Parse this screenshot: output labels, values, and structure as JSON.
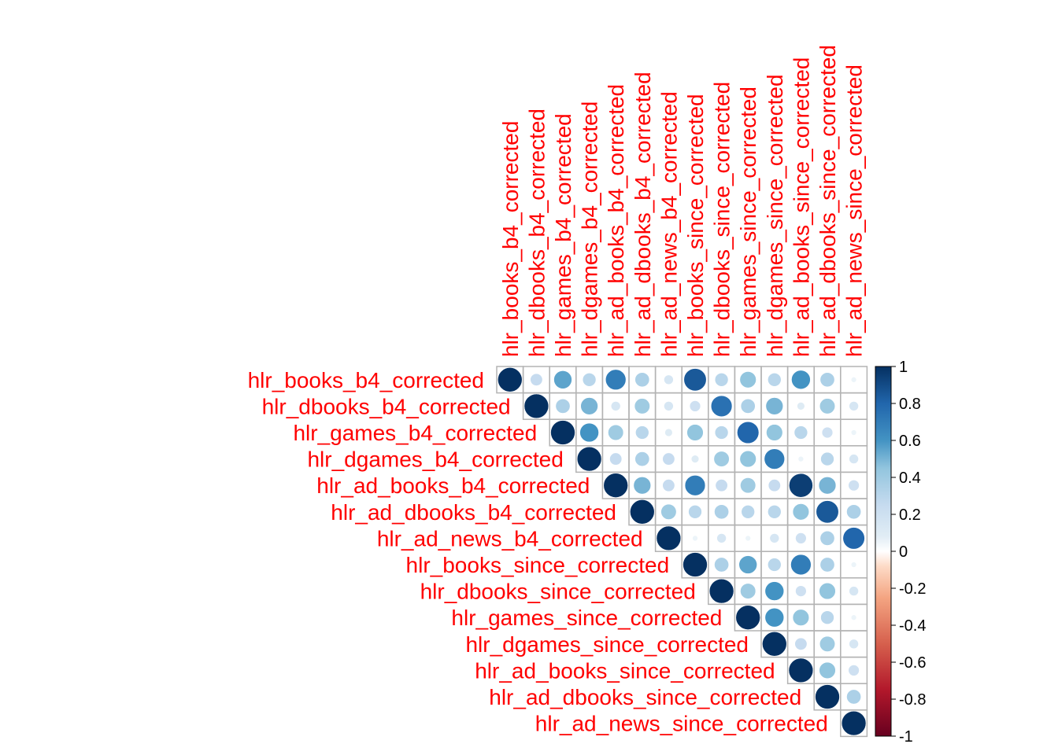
{
  "chart_data": {
    "type": "heatmap",
    "subtype": "correlation-matrix-upper-circles",
    "label_color": "#ff0000",
    "variables": [
      "hlr_books_b4_corrected",
      "hlr_dbooks_b4_corrected",
      "hlr_games_b4_corrected",
      "hlr_dgames_b4_corrected",
      "hlr_ad_books_b4_corrected",
      "hlr_ad_dbooks_b4_corrected",
      "hlr_ad_news_b4_corrected",
      "hlr_books_since_corrected",
      "hlr_dbooks_since_corrected",
      "hlr_games_since_corrected",
      "hlr_dgames_since_corrected",
      "hlr_ad_books_since_corrected",
      "hlr_ad_dbooks_since_corrected",
      "hlr_ad_news_since_corrected"
    ],
    "matrix": [
      [
        1,
        0.25,
        0.55,
        0.3,
        0.7,
        0.35,
        0.15,
        0.85,
        0.3,
        0.45,
        0.3,
        0.6,
        0.35,
        0.05
      ],
      [
        null,
        1,
        0.35,
        0.5,
        0.15,
        0.4,
        0.15,
        0.2,
        0.75,
        0.35,
        0.5,
        0.1,
        0.4,
        0.15
      ],
      [
        null,
        null,
        1,
        0.6,
        0.4,
        0.3,
        0.1,
        0.45,
        0.3,
        0.8,
        0.45,
        0.3,
        0.2,
        0.05
      ],
      [
        null,
        null,
        null,
        1,
        0.25,
        0.35,
        0.25,
        0.1,
        0.4,
        0.45,
        0.7,
        0.05,
        0.3,
        0.15
      ],
      [
        null,
        null,
        null,
        null,
        1,
        0.5,
        0.25,
        0.7,
        0.25,
        0.4,
        0.25,
        0.95,
        0.5,
        0.2
      ],
      [
        null,
        null,
        null,
        null,
        null,
        1,
        0.4,
        0.3,
        0.35,
        0.3,
        0.3,
        0.45,
        0.85,
        0.35
      ],
      [
        null,
        null,
        null,
        null,
        null,
        null,
        1,
        0.05,
        0.15,
        0.05,
        0.15,
        0.2,
        0.35,
        0.8
      ],
      [
        null,
        null,
        null,
        null,
        null,
        null,
        null,
        1,
        0.35,
        0.55,
        0.3,
        0.7,
        0.35,
        0.05
      ],
      [
        null,
        null,
        null,
        null,
        null,
        null,
        null,
        null,
        1,
        0.4,
        0.6,
        0.2,
        0.45,
        0.15
      ],
      [
        null,
        null,
        null,
        null,
        null,
        null,
        null,
        null,
        null,
        1,
        0.6,
        0.45,
        0.3,
        0.05
      ],
      [
        null,
        null,
        null,
        null,
        null,
        null,
        null,
        null,
        null,
        null,
        1,
        0.25,
        0.4,
        0.15
      ],
      [
        null,
        null,
        null,
        null,
        null,
        null,
        null,
        null,
        null,
        null,
        null,
        1,
        0.45,
        0.2
      ],
      [
        null,
        null,
        null,
        null,
        null,
        null,
        null,
        null,
        null,
        null,
        null,
        null,
        1,
        0.35
      ],
      [
        null,
        null,
        null,
        null,
        null,
        null,
        null,
        null,
        null,
        null,
        null,
        null,
        null,
        1
      ]
    ],
    "colorbar": {
      "range": [
        -1,
        1
      ],
      "ticks": [
        "1",
        "0.8",
        "0.6",
        "0.4",
        "0.2",
        "0",
        "-0.2",
        "-0.4",
        "-0.6",
        "-0.8",
        "-1"
      ],
      "stops": [
        {
          "value": -1.0,
          "color": "#67001f"
        },
        {
          "value": -0.75,
          "color": "#b2182b"
        },
        {
          "value": -0.5,
          "color": "#d6604d"
        },
        {
          "value": -0.25,
          "color": "#f4a582"
        },
        {
          "value": -0.08,
          "color": "#fddbc7"
        },
        {
          "value": 0.0,
          "color": "#ffffff"
        },
        {
          "value": 0.08,
          "color": "#e1edf5"
        },
        {
          "value": 0.25,
          "color": "#c6dbef"
        },
        {
          "value": 0.45,
          "color": "#92c5de"
        },
        {
          "value": 0.6,
          "color": "#4393c3"
        },
        {
          "value": 0.8,
          "color": "#2166ac"
        },
        {
          "value": 1.0,
          "color": "#053061"
        }
      ]
    },
    "grid_color": "#b3b3b3"
  }
}
